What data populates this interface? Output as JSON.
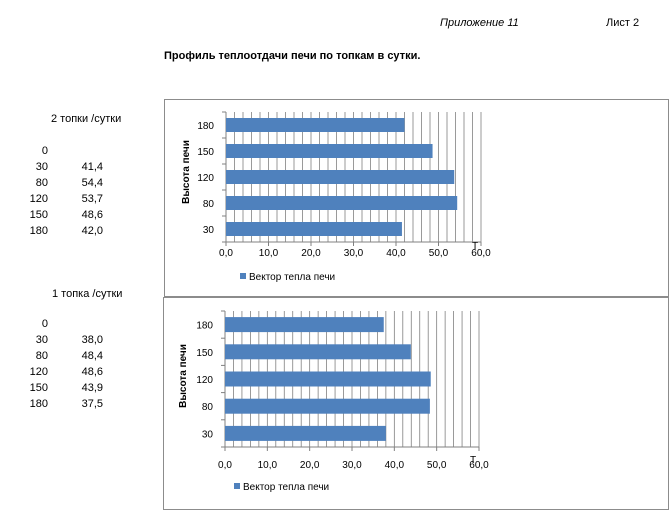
{
  "header": {
    "appendix": "Приложение  11",
    "sheet": "Лист 2"
  },
  "page_title": "Профиль теплоотдачи печи по топкам в сутки.",
  "colors": {
    "bar": "#4f81bd",
    "grid": "#808080",
    "axis": "#808080"
  },
  "tables": [
    {
      "title": "2 топки /сутки",
      "rows": [
        [
          "0",
          ""
        ],
        [
          "30",
          "41,4"
        ],
        [
          "80",
          "54,4"
        ],
        [
          "120",
          "53,7"
        ],
        [
          "150",
          "48,6"
        ],
        [
          "180",
          "42,0"
        ]
      ]
    },
    {
      "title": "1 топка /сутки",
      "rows": [
        [
          "0",
          ""
        ],
        [
          "30",
          "38,0"
        ],
        [
          "80",
          "48,4"
        ],
        [
          "120",
          "48,6"
        ],
        [
          "150",
          "43,9"
        ],
        [
          "180",
          "37,5"
        ]
      ]
    }
  ],
  "chart_data": [
    {
      "type": "bar",
      "orientation": "horizontal",
      "categories": [
        "30",
        "80",
        "120",
        "150",
        "180"
      ],
      "series": [
        {
          "name": "Вектор тепла печи",
          "values": [
            41.4,
            54.4,
            53.7,
            48.6,
            42.0
          ]
        }
      ],
      "xlabel": "Т",
      "ylabel": "Высота печи",
      "xlim": [
        0,
        60
      ],
      "xticks": [
        "0,0",
        "10,0",
        "20,0",
        "30,0",
        "40,0",
        "50,0",
        "60,0"
      ],
      "grid": "vertical",
      "legend": "bottom"
    },
    {
      "type": "bar",
      "orientation": "horizontal",
      "categories": [
        "30",
        "80",
        "120",
        "150",
        "180"
      ],
      "series": [
        {
          "name": "Вектор тепла печи",
          "values": [
            38.0,
            48.4,
            48.6,
            43.9,
            37.5
          ]
        }
      ],
      "xlabel": "Т",
      "ylabel": "Высота печи",
      "xlim": [
        0,
        60
      ],
      "xticks": [
        "0,0",
        "10,0",
        "20,0",
        "30,0",
        "40,0",
        "50,0",
        "60,0"
      ],
      "grid": "vertical",
      "legend": "bottom"
    }
  ]
}
